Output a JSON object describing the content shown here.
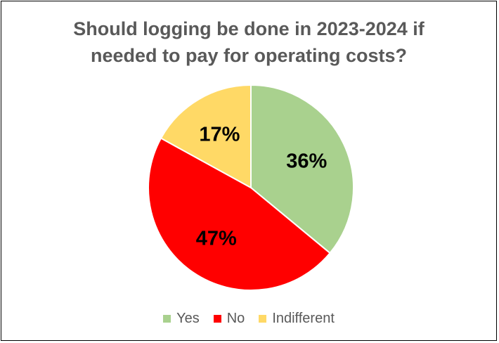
{
  "chart_data": {
    "type": "pie",
    "title_lines": [
      "Should logging be done in 2023-2024 if",
      "needed to pay for operating costs?"
    ],
    "slices": [
      {
        "label": "Yes",
        "value": 36,
        "display": "36%",
        "color": "#a9d18e"
      },
      {
        "label": "No",
        "value": 47,
        "display": "47%",
        "color": "#ff0000"
      },
      {
        "label": "Indifferent",
        "value": 17,
        "display": "17%",
        "color": "#ffd966"
      }
    ],
    "start_angle": "12 o'clock",
    "direction": "clockwise",
    "legend_position": "bottom",
    "slice_border_color": "#ffffff",
    "title_color": "#595959",
    "legend_text_color": "#595959",
    "data_label_color": "#000000"
  }
}
